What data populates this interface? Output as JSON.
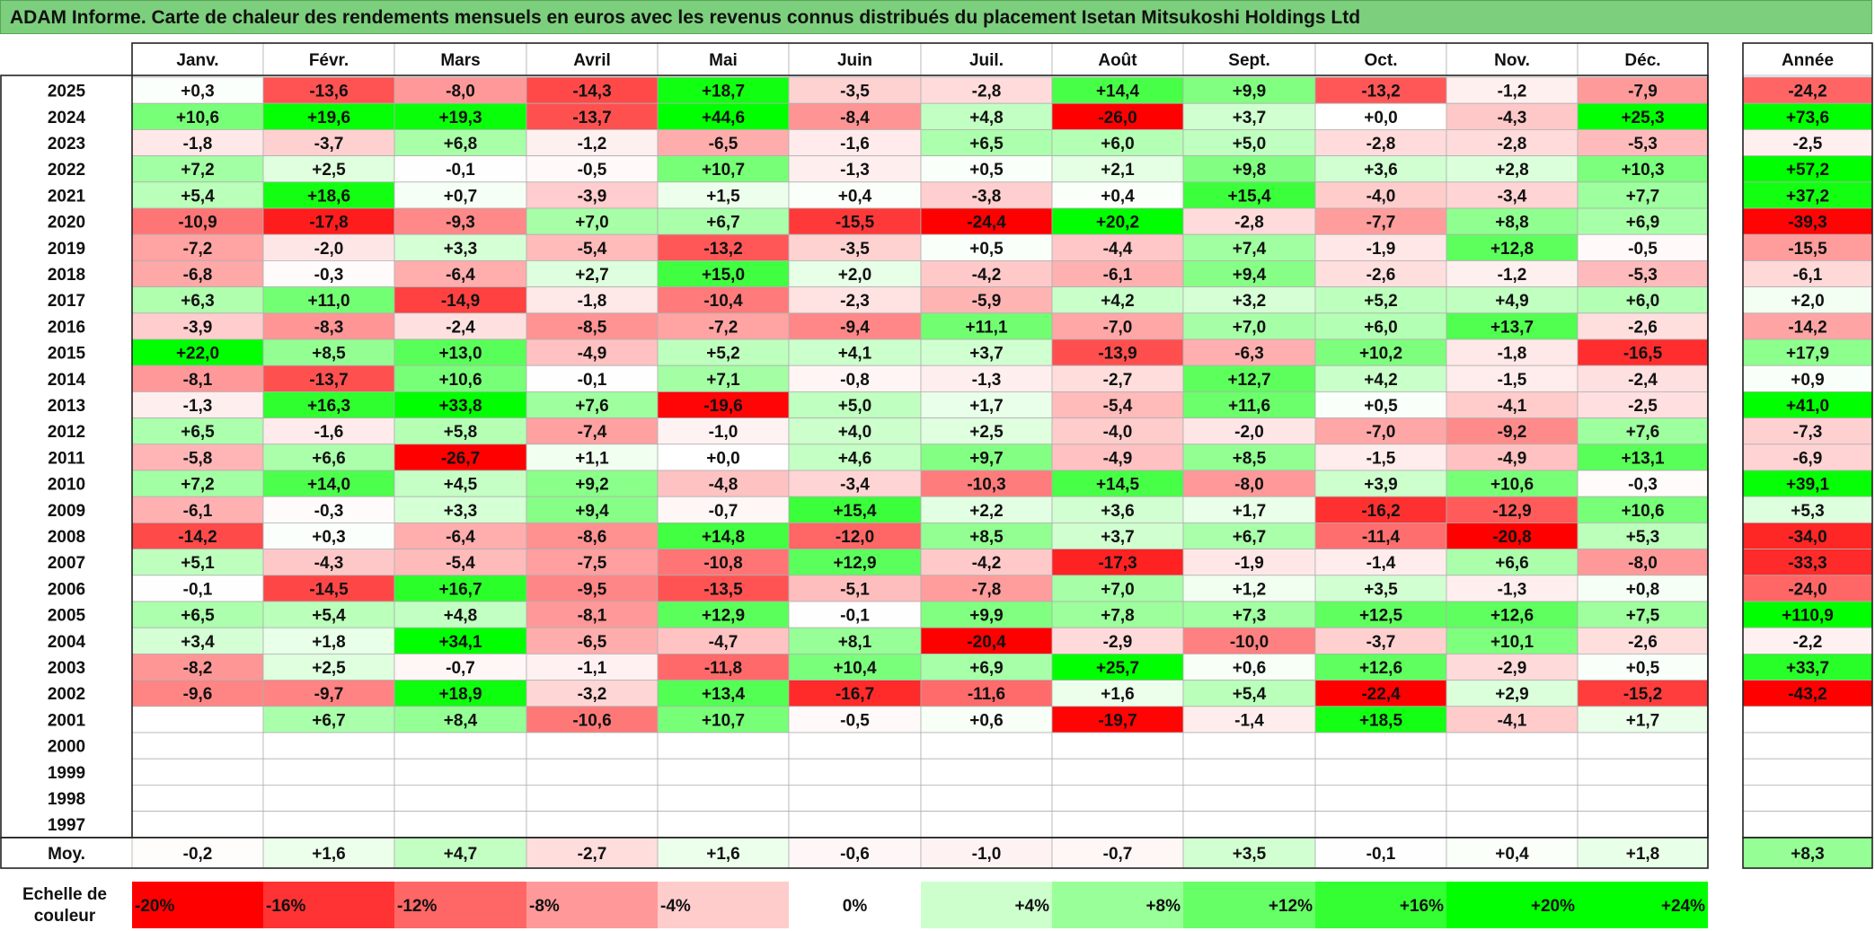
{
  "title": "ADAM Informe. Carte de chaleur des rendements mensuels en euros avec les revenus connus distribués du placement Isetan Mitsukoshi Holdings Ltd",
  "chart_data": {
    "type": "heatmap",
    "title": "ADAM Informe. Carte de chaleur des rendements mensuels en euros avec les revenus connus distribués du placement Isetan Mitsukoshi Holdings Ltd",
    "columns": [
      "Janv.",
      "Févr.",
      "Mars",
      "Avril",
      "Mai",
      "Juin",
      "Juil.",
      "Août",
      "Sept.",
      "Oct.",
      "Nov.",
      "Déc."
    ],
    "year_header": "Année",
    "rows": [
      {
        "year": "2025",
        "values": [
          "+0,3",
          "-13,6",
          "-8,0",
          "-14,3",
          "+18,7",
          "-3,5",
          "-2,8",
          "+14,4",
          "+9,9",
          "-13,2",
          "-1,2",
          "-7,9"
        ],
        "annual": "-24,2"
      },
      {
        "year": "2024",
        "values": [
          "+10,6",
          "+19,6",
          "+19,3",
          "-13,7",
          "+44,6",
          "-8,4",
          "+4,8",
          "-26,0",
          "+3,7",
          "+0,0",
          "-4,3",
          "+25,3"
        ],
        "annual": "+73,6"
      },
      {
        "year": "2023",
        "values": [
          "-1,8",
          "-3,7",
          "+6,8",
          "-1,2",
          "-6,5",
          "-1,6",
          "+6,5",
          "+6,0",
          "+5,0",
          "-2,8",
          "-2,8",
          "-5,3"
        ],
        "annual": "-2,5"
      },
      {
        "year": "2022",
        "values": [
          "+7,2",
          "+2,5",
          "-0,1",
          "-0,5",
          "+10,7",
          "-1,3",
          "+0,5",
          "+2,1",
          "+9,8",
          "+3,6",
          "+2,8",
          "+10,3"
        ],
        "annual": "+57,2"
      },
      {
        "year": "2021",
        "values": [
          "+5,4",
          "+18,6",
          "+0,7",
          "-3,9",
          "+1,5",
          "+0,4",
          "-3,8",
          "+0,4",
          "+15,4",
          "-4,0",
          "-3,4",
          "+7,7"
        ],
        "annual": "+37,2"
      },
      {
        "year": "2020",
        "values": [
          "-10,9",
          "-17,8",
          "-9,3",
          "+7,0",
          "+6,7",
          "-15,5",
          "-24,4",
          "+20,2",
          "-2,8",
          "-7,7",
          "+8,8",
          "+6,9"
        ],
        "annual": "-39,3"
      },
      {
        "year": "2019",
        "values": [
          "-7,2",
          "-2,0",
          "+3,3",
          "-5,4",
          "-13,2",
          "-3,5",
          "+0,5",
          "-4,4",
          "+7,4",
          "-1,9",
          "+12,8",
          "-0,5"
        ],
        "annual": "-15,5"
      },
      {
        "year": "2018",
        "values": [
          "-6,8",
          "-0,3",
          "-6,4",
          "+2,7",
          "+15,0",
          "+2,0",
          "-4,2",
          "-6,1",
          "+9,4",
          "-2,6",
          "-1,2",
          "-5,3"
        ],
        "annual": "-6,1"
      },
      {
        "year": "2017",
        "values": [
          "+6,3",
          "+11,0",
          "-14,9",
          "-1,8",
          "-10,4",
          "-2,3",
          "-5,9",
          "+4,2",
          "+3,2",
          "+5,2",
          "+4,9",
          "+6,0"
        ],
        "annual": "+2,0"
      },
      {
        "year": "2016",
        "values": [
          "-3,9",
          "-8,3",
          "-2,4",
          "-8,5",
          "-7,2",
          "-9,4",
          "+11,1",
          "-7,0",
          "+7,0",
          "+6,0",
          "+13,7",
          "-2,6"
        ],
        "annual": "-14,2"
      },
      {
        "year": "2015",
        "values": [
          "+22,0",
          "+8,5",
          "+13,0",
          "-4,9",
          "+5,2",
          "+4,1",
          "+3,7",
          "-13,9",
          "-6,3",
          "+10,2",
          "-1,8",
          "-16,5"
        ],
        "annual": "+17,9"
      },
      {
        "year": "2014",
        "values": [
          "-8,1",
          "-13,7",
          "+10,6",
          "-0,1",
          "+7,1",
          "-0,8",
          "-1,3",
          "-2,7",
          "+12,7",
          "+4,2",
          "-1,5",
          "-2,4"
        ],
        "annual": "+0,9"
      },
      {
        "year": "2013",
        "values": [
          "-1,3",
          "+16,3",
          "+33,8",
          "+7,6",
          "-19,6",
          "+5,0",
          "+1,7",
          "-5,4",
          "+11,6",
          "+0,5",
          "-4,1",
          "-2,5"
        ],
        "annual": "+41,0"
      },
      {
        "year": "2012",
        "values": [
          "+6,5",
          "-1,6",
          "+5,8",
          "-7,4",
          "-1,0",
          "+4,0",
          "+2,5",
          "-4,0",
          "-2,0",
          "-7,0",
          "-9,2",
          "+7,6"
        ],
        "annual": "-7,3"
      },
      {
        "year": "2011",
        "values": [
          "-5,8",
          "+6,6",
          "-26,7",
          "+1,1",
          "+0,0",
          "+4,6",
          "+9,7",
          "-4,9",
          "+8,5",
          "-1,5",
          "-4,9",
          "+13,1"
        ],
        "annual": "-6,9"
      },
      {
        "year": "2010",
        "values": [
          "+7,2",
          "+14,0",
          "+4,5",
          "+9,2",
          "-4,8",
          "-3,4",
          "-10,3",
          "+14,5",
          "-8,0",
          "+3,9",
          "+10,6",
          "-0,3"
        ],
        "annual": "+39,1"
      },
      {
        "year": "2009",
        "values": [
          "-6,1",
          "-0,3",
          "+3,3",
          "+9,4",
          "-0,7",
          "+15,4",
          "+2,2",
          "+3,6",
          "+1,7",
          "-16,2",
          "-12,9",
          "+10,6"
        ],
        "annual": "+5,3"
      },
      {
        "year": "2008",
        "values": [
          "-14,2",
          "+0,3",
          "-6,4",
          "-8,6",
          "+14,8",
          "-12,0",
          "+8,5",
          "+3,7",
          "+6,7",
          "-11,4",
          "-20,8",
          "+5,3"
        ],
        "annual": "-34,0"
      },
      {
        "year": "2007",
        "values": [
          "+5,1",
          "-4,3",
          "-5,4",
          "-7,5",
          "-10,8",
          "+12,9",
          "-4,2",
          "-17,3",
          "-1,9",
          "-1,4",
          "+6,6",
          "-8,0"
        ],
        "annual": "-33,3"
      },
      {
        "year": "2006",
        "values": [
          "-0,1",
          "-14,5",
          "+16,7",
          "-9,5",
          "-13,5",
          "-5,1",
          "-7,8",
          "+7,0",
          "+1,2",
          "+3,5",
          "-1,3",
          "+0,8"
        ],
        "annual": "-24,0"
      },
      {
        "year": "2005",
        "values": [
          "+6,5",
          "+5,4",
          "+4,8",
          "-8,1",
          "+12,9",
          "-0,1",
          "+9,9",
          "+7,8",
          "+7,3",
          "+12,5",
          "+12,6",
          "+7,5"
        ],
        "annual": "+110,9"
      },
      {
        "year": "2004",
        "values": [
          "+3,4",
          "+1,8",
          "+34,1",
          "-6,5",
          "-4,7",
          "+8,1",
          "-20,4",
          "-2,9",
          "-10,0",
          "-3,7",
          "+10,1",
          "-2,6"
        ],
        "annual": "-2,2"
      },
      {
        "year": "2003",
        "values": [
          "-8,2",
          "+2,5",
          "-0,7",
          "-1,1",
          "-11,8",
          "+10,4",
          "+6,9",
          "+25,7",
          "+0,6",
          "+12,6",
          "-2,9",
          "+0,5"
        ],
        "annual": "+33,7"
      },
      {
        "year": "2002",
        "values": [
          "-9,6",
          "-9,7",
          "+18,9",
          "-3,2",
          "+13,4",
          "-16,7",
          "-11,6",
          "+1,6",
          "+5,4",
          "-22,4",
          "+2,9",
          "-15,2"
        ],
        "annual": "-43,2"
      },
      {
        "year": "2001",
        "values": [
          "",
          "+6,7",
          "+8,4",
          "-10,6",
          "+10,7",
          "-0,5",
          "+0,6",
          "-19,7",
          "-1,4",
          "+18,5",
          "-4,1",
          "+1,7"
        ],
        "annual": ""
      },
      {
        "year": "2000",
        "values": [
          "",
          "",
          "",
          "",
          "",
          "",
          "",
          "",
          "",
          "",
          "",
          ""
        ],
        "annual": ""
      },
      {
        "year": "1999",
        "values": [
          "",
          "",
          "",
          "",
          "",
          "",
          "",
          "",
          "",
          "",
          "",
          ""
        ],
        "annual": ""
      },
      {
        "year": "1998",
        "values": [
          "",
          "",
          "",
          "",
          "",
          "",
          "",
          "",
          "",
          "",
          "",
          ""
        ],
        "annual": ""
      },
      {
        "year": "1997",
        "values": [
          "",
          "",
          "",
          "",
          "",
          "",
          "",
          "",
          "",
          "",
          "",
          ""
        ],
        "annual": ""
      }
    ],
    "average": {
      "label": "Moy.",
      "values": [
        "-0,2",
        "+1,6",
        "+4,7",
        "-2,7",
        "+1,6",
        "-0,6",
        "-1,0",
        "-0,7",
        "+3,5",
        "-0,1",
        "+0,4",
        "+1,8"
      ],
      "annual": "+8,3"
    },
    "scale": {
      "label_line1": "Echelle de",
      "label_line2": "couleur",
      "stops": [
        "-20%",
        "-16%",
        "-12%",
        "-8%",
        "-4%",
        "0%",
        "+4%",
        "+8%",
        "+12%",
        "+16%",
        "+20%",
        "+24%"
      ],
      "stop_values": [
        -20,
        -16,
        -12,
        -8,
        -4,
        0,
        4,
        8,
        12,
        16,
        20,
        24
      ]
    },
    "colors": {
      "negative_max": "#ff0000",
      "positive_max": "#00ff00",
      "neutral": "#ffffff",
      "title_bg": "#7ccf7c"
    }
  }
}
